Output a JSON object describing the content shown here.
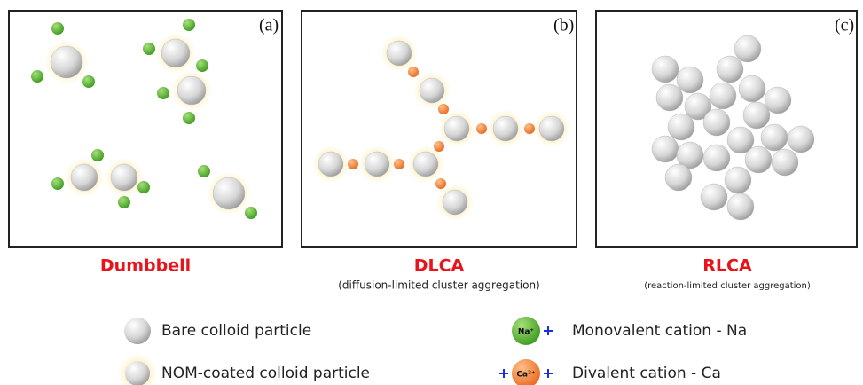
{
  "panels": [
    {
      "label": "(a)",
      "title": "Dumbbell"
    },
    {
      "label": "(b)",
      "title": "DLCA",
      "subtitle": "(diffusion-limited cluster aggregation)"
    },
    {
      "label": "(c)",
      "title": "RLCA",
      "subtitle": "(reaction-limited cluster aggregation)"
    }
  ],
  "legend": [
    {
      "text": "Bare colloid particle"
    },
    {
      "text": "NOM-coated colloid particle"
    },
    {
      "icon": "Na⁺",
      "text": "Monovalent cation - Na"
    },
    {
      "icon": "Ca²⁺",
      "text": "Divalent cation - Ca"
    }
  ]
}
